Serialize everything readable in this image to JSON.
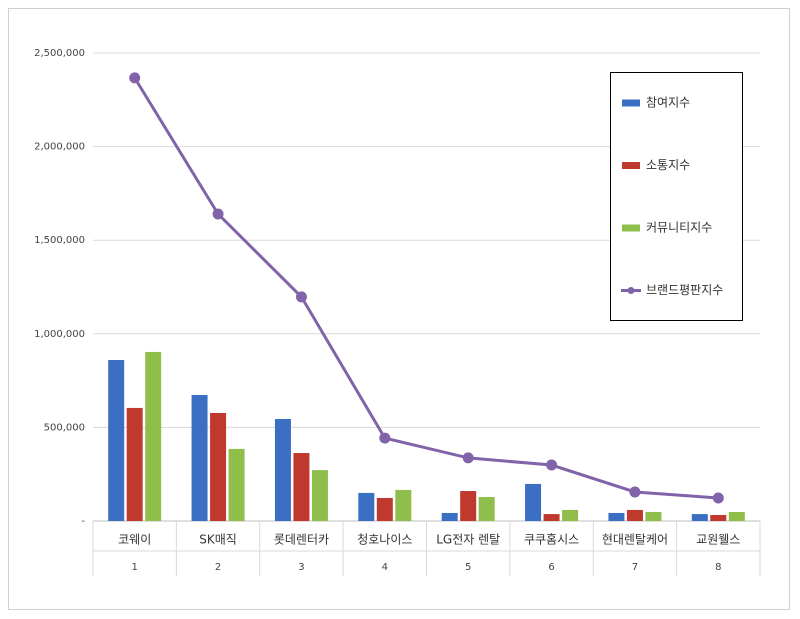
{
  "chart_data": {
    "type": "bar",
    "categories": [
      "코웨이",
      "SK매직",
      "롯데렌터카",
      "청호나이스",
      "LG전자 렌탈",
      "쿠쿠홈시스",
      "현대렌탈케어",
      "교원웰스"
    ],
    "ranks": [
      "1",
      "2",
      "3",
      "4",
      "5",
      "6",
      "7",
      "8"
    ],
    "series": [
      {
        "name": "참여지수",
        "color": "#3a6fc4",
        "values": [
          860000,
          673000,
          545000,
          150000,
          43000,
          198000,
          43000,
          37000
        ]
      },
      {
        "name": "소통지수",
        "color": "#c0392f",
        "values": [
          604000,
          577000,
          363000,
          123000,
          160000,
          37000,
          59000,
          32000
        ]
      },
      {
        "name": "커뮤니티지수",
        "color": "#8fbf4a",
        "values": [
          903000,
          385000,
          272000,
          166000,
          128000,
          59000,
          48000,
          48000
        ]
      },
      {
        "name": "브랜드평판지수",
        "color": "#8063a8",
        "type": "line",
        "values": [
          2367000,
          1640000,
          1197000,
          443000,
          337000,
          299000,
          155000,
          123000
        ]
      }
    ],
    "ylim": [
      0,
      2500000
    ],
    "yticks": [
      {
        "value": 0,
        "label": "-"
      },
      {
        "value": 500000,
        "label": "500,000"
      },
      {
        "value": 1000000,
        "label": "1,000,000"
      },
      {
        "value": 1500000,
        "label": "1,500,000"
      },
      {
        "value": 2000000,
        "label": "2,000,000"
      },
      {
        "value": 2500000,
        "label": "2,500,000"
      }
    ],
    "grid": true,
    "legend": "right"
  }
}
